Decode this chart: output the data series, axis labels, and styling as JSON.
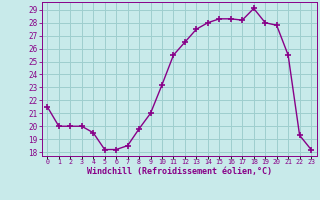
{
  "x": [
    0,
    1,
    2,
    3,
    4,
    5,
    6,
    7,
    8,
    9,
    10,
    11,
    12,
    13,
    14,
    15,
    16,
    17,
    18,
    19,
    20,
    21,
    22,
    23
  ],
  "y": [
    21.5,
    20.0,
    20.0,
    20.0,
    19.5,
    18.2,
    18.2,
    18.5,
    19.8,
    21.0,
    23.2,
    25.5,
    26.5,
    27.5,
    28.0,
    28.3,
    28.3,
    28.2,
    29.1,
    28.0,
    27.8,
    25.5,
    19.3,
    18.2
  ],
  "line_color": "#880088",
  "marker": "+",
  "markersize": 4,
  "linewidth": 1.0,
  "bg_color": "#c8eaea",
  "grid_color": "#9ecece",
  "ylabel_ticks": [
    18,
    19,
    20,
    21,
    22,
    23,
    24,
    25,
    26,
    27,
    28,
    29
  ],
  "ylim": [
    17.7,
    29.6
  ],
  "xlim": [
    -0.5,
    23.5
  ],
  "xlabel": "Windchill (Refroidissement éolien,°C)",
  "xlabel_color": "#880088",
  "tick_color": "#880088",
  "xtick_labels": [
    "0",
    "1",
    "2",
    "3",
    "4",
    "5",
    "6",
    "7",
    "8",
    "9",
    "10",
    "11",
    "12",
    "13",
    "14",
    "15",
    "16",
    "17",
    "18",
    "19",
    "20",
    "21",
    "22",
    "23"
  ]
}
